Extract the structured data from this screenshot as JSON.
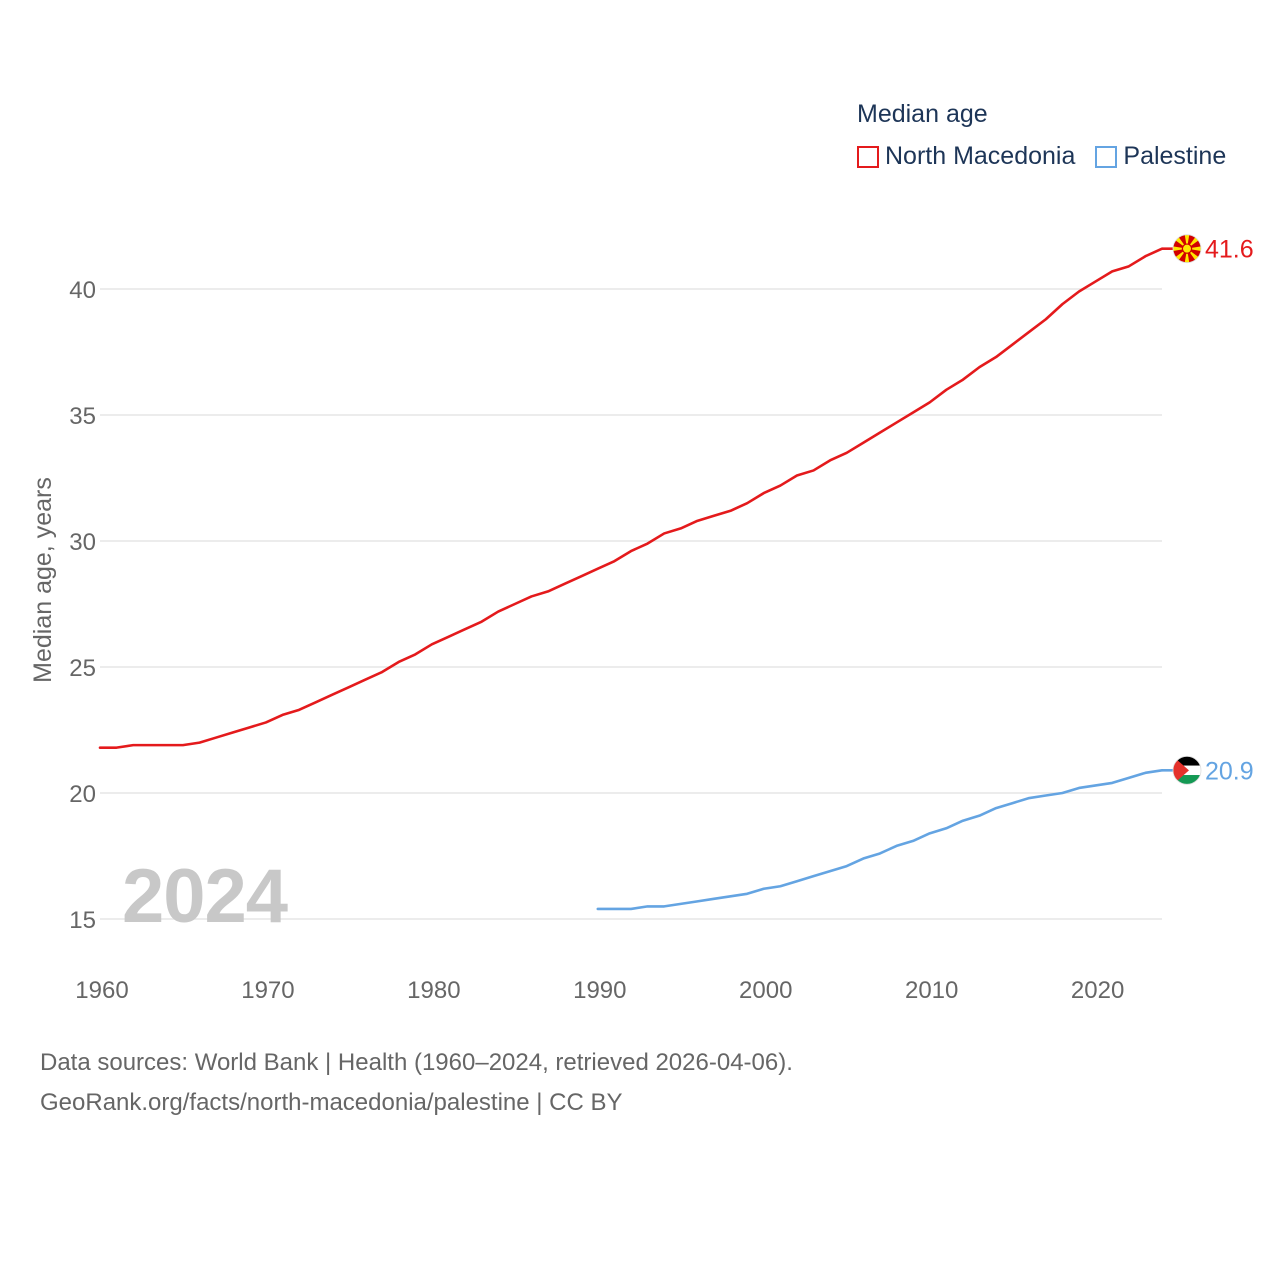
{
  "legend": {
    "title": "Median age",
    "items": [
      {
        "name": "North Macedonia",
        "color": "#e41a1c"
      },
      {
        "name": "Palestine",
        "color": "#64a4e2"
      }
    ]
  },
  "year_label": "2024",
  "source": {
    "line1": "Data sources: World Bank | Health (1960–2024, retrieved 2026-04-06).",
    "line2": "GeoRank.org/facts/north-macedonia/palestine | CC BY"
  },
  "chart_data": {
    "type": "line",
    "title": "Median age",
    "xlabel": "",
    "ylabel": "Median age, years",
    "xlim": [
      1960,
      2024
    ],
    "ylim": [
      13.8,
      42
    ],
    "x_ticks": [
      1960,
      1970,
      1980,
      1990,
      2000,
      2010,
      2020
    ],
    "y_ticks": [
      15,
      20,
      25,
      30,
      35,
      40
    ],
    "grid": true,
    "legend_position": "top-right",
    "series": [
      {
        "name": "North Macedonia",
        "color": "#e41a1c",
        "end_label": "41.6",
        "flag": "north-macedonia-flag",
        "x": [
          1960,
          1961,
          1962,
          1963,
          1964,
          1965,
          1966,
          1967,
          1968,
          1969,
          1970,
          1971,
          1972,
          1973,
          1974,
          1975,
          1976,
          1977,
          1978,
          1979,
          1980,
          1981,
          1982,
          1983,
          1984,
          1985,
          1986,
          1987,
          1988,
          1989,
          1990,
          1991,
          1992,
          1993,
          1994,
          1995,
          1996,
          1997,
          1998,
          1999,
          2000,
          2001,
          2002,
          2003,
          2004,
          2005,
          2006,
          2007,
          2008,
          2009,
          2010,
          2011,
          2012,
          2013,
          2014,
          2015,
          2016,
          2017,
          2018,
          2019,
          2020,
          2021,
          2022,
          2023,
          2024
        ],
        "values": [
          21.8,
          21.8,
          21.9,
          21.9,
          21.9,
          21.9,
          22.0,
          22.2,
          22.4,
          22.6,
          22.8,
          23.1,
          23.3,
          23.6,
          23.9,
          24.2,
          24.5,
          24.8,
          25.2,
          25.5,
          25.9,
          26.2,
          26.5,
          26.8,
          27.2,
          27.5,
          27.8,
          28.0,
          28.3,
          28.6,
          28.9,
          29.2,
          29.6,
          29.9,
          30.3,
          30.5,
          30.8,
          31.0,
          31.2,
          31.5,
          31.9,
          32.2,
          32.6,
          32.8,
          33.2,
          33.5,
          33.9,
          34.3,
          34.7,
          35.1,
          35.5,
          36.0,
          36.4,
          36.9,
          37.3,
          37.8,
          38.3,
          38.8,
          39.4,
          39.9,
          40.3,
          40.7,
          40.9,
          41.3,
          41.6
        ]
      },
      {
        "name": "Palestine",
        "color": "#64a4e2",
        "end_label": "20.9",
        "flag": "palestine-flag",
        "x": [
          1990,
          1991,
          1992,
          1993,
          1994,
          1995,
          1996,
          1997,
          1998,
          1999,
          2000,
          2001,
          2002,
          2003,
          2004,
          2005,
          2006,
          2007,
          2008,
          2009,
          2010,
          2011,
          2012,
          2013,
          2014,
          2015,
          2016,
          2017,
          2018,
          2019,
          2020,
          2021,
          2022,
          2023,
          2024
        ],
        "values": [
          15.4,
          15.4,
          15.4,
          15.5,
          15.5,
          15.6,
          15.7,
          15.8,
          15.9,
          16.0,
          16.2,
          16.3,
          16.5,
          16.7,
          16.9,
          17.1,
          17.4,
          17.6,
          17.9,
          18.1,
          18.4,
          18.6,
          18.9,
          19.1,
          19.4,
          19.6,
          19.8,
          19.9,
          20.0,
          20.2,
          20.3,
          20.4,
          20.6,
          20.8,
          20.9
        ]
      }
    ]
  }
}
